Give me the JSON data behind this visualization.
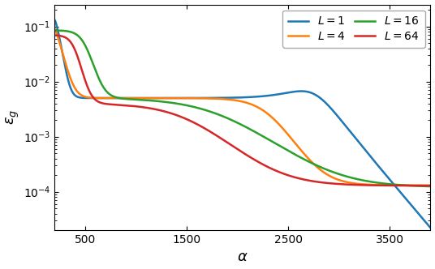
{
  "xlabel": "$\\alpha$",
  "ylabel": "$\\varepsilon_g$",
  "xlim": [
    195,
    3900
  ],
  "ylim": [
    2e-05,
    0.25
  ],
  "legend": [
    {
      "label": "$L = 1$",
      "color": "#1f77b4"
    },
    {
      "label": "$L = 4$",
      "color": "#ff7f0e"
    },
    {
      "label": "$L = 16$",
      "color": "#2ca02c"
    },
    {
      "label": "$L = 64$",
      "color": "#d62728"
    }
  ],
  "figsize": [
    5.36,
    3.32
  ],
  "dpi": 100,
  "xticks": [
    500,
    1500,
    2500,
    3500
  ],
  "xtick_labels": [
    "500",
    "1500",
    "2500",
    "3500"
  ]
}
